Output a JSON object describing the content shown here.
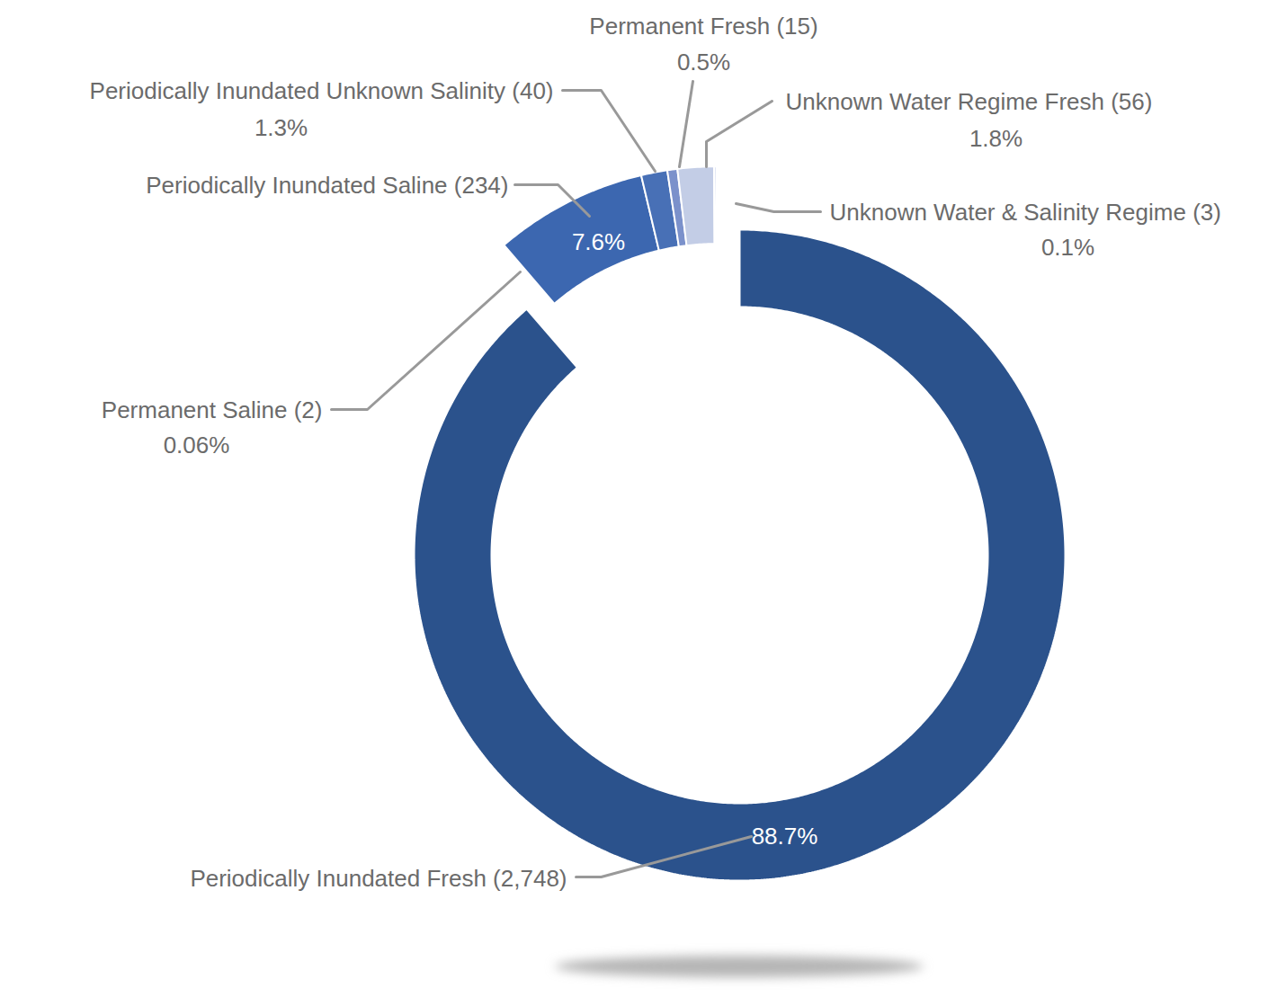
{
  "chart_data": {
    "type": "donut",
    "categories": [
      "Periodically Inundated Fresh (2,748)",
      "Permanent Saline (2)",
      "Periodically Inundated Saline (234)",
      "Periodically Inundated Unknown Salinity (40)",
      "Permanent Fresh (15)",
      "Unknown Water Regime Fresh (56)",
      "Unknown Water & Salinity Regime (3)"
    ],
    "values": [
      88.7,
      0.06,
      7.6,
      1.3,
      0.5,
      1.8,
      0.1
    ],
    "value_labels": [
      "88.7%",
      "0.06%",
      "7.6%",
      "1.3%",
      "0.5%",
      "1.8%",
      "0.1%"
    ],
    "colors": [
      "#2b528c",
      "#3f68b0",
      "#3c67b0",
      "#4870b6",
      "#7b91cb",
      "#c3cde6",
      "#8ea2d6"
    ],
    "data_labels": true
  }
}
